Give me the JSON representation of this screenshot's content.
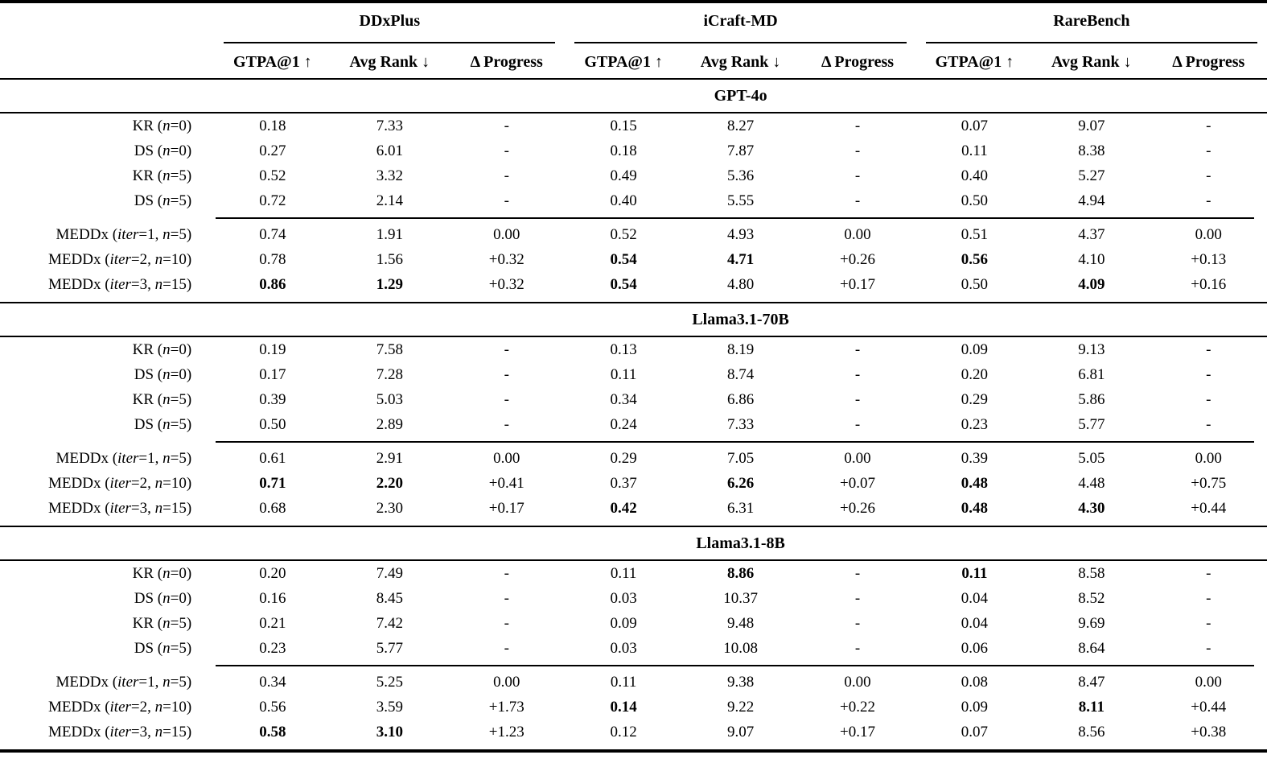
{
  "page": {
    "background": "#ffffff",
    "text_color": "#000000",
    "rule_color": "#000000"
  },
  "table": {
    "corner_label": "",
    "groups": [
      {
        "name": "DDxPlus"
      },
      {
        "name": "iCraft-MD"
      },
      {
        "name": "RareBench"
      }
    ],
    "metric_headers": [
      {
        "label": "GTPA@1",
        "arrow": "↑"
      },
      {
        "label": "Avg Rank",
        "arrow": "↓"
      },
      {
        "label": "Δ Progress",
        "arrow": ""
      }
    ],
    "sections": [
      {
        "model": "GPT-4o",
        "baseline_rows": [
          {
            "label": "KR (*n*=0)",
            "values": [
              "0.18",
              "7.33",
              "-",
              "0.15",
              "8.27",
              "-",
              "0.07",
              "9.07",
              "-"
            ],
            "bold": []
          },
          {
            "label": "DS (*n*=0)",
            "values": [
              "0.27",
              "6.01",
              "-",
              "0.18",
              "7.87",
              "-",
              "0.11",
              "8.38",
              "-"
            ],
            "bold": []
          },
          {
            "label": "KR (*n*=5)",
            "values": [
              "0.52",
              "3.32",
              "-",
              "0.49",
              "5.36",
              "-",
              "0.40",
              "5.27",
              "-"
            ],
            "bold": []
          },
          {
            "label": "DS (*n*=5)",
            "values": [
              "0.72",
              "2.14",
              "-",
              "0.40",
              "5.55",
              "-",
              "0.50",
              "4.94",
              "-"
            ],
            "bold": []
          }
        ],
        "meddx_rows": [
          {
            "label": "MEDDx (*iter*=1, *n*=5)",
            "values": [
              "0.74",
              "1.91",
              "0.00",
              "0.52",
              "4.93",
              "0.00",
              "0.51",
              "4.37",
              "0.00"
            ],
            "bold": []
          },
          {
            "label": "MEDDx (*iter*=2, *n*=10)",
            "values": [
              "0.78",
              "1.56",
              "+0.32",
              "0.54",
              "4.71",
              "+0.26",
              "0.56",
              "4.10",
              "+0.13"
            ],
            "bold": [
              3,
              4,
              6
            ]
          },
          {
            "label": "MEDDx (*iter*=3, *n*=15)",
            "values": [
              "0.86",
              "1.29",
              "+0.32",
              "0.54",
              "4.80",
              "+0.17",
              "0.50",
              "4.09",
              "+0.16"
            ],
            "bold": [
              0,
              1,
              3,
              7
            ]
          }
        ]
      },
      {
        "model": "Llama3.1-70B",
        "baseline_rows": [
          {
            "label": "KR (*n*=0)",
            "values": [
              "0.19",
              "7.58",
              "-",
              "0.13",
              "8.19",
              "-",
              "0.09",
              "9.13",
              "-"
            ],
            "bold": []
          },
          {
            "label": "DS (*n*=0)",
            "values": [
              "0.17",
              "7.28",
              "-",
              "0.11",
              "8.74",
              "-",
              "0.20",
              "6.81",
              "-"
            ],
            "bold": []
          },
          {
            "label": "KR (*n*=5)",
            "values": [
              "0.39",
              "5.03",
              "-",
              "0.34",
              "6.86",
              "-",
              "0.29",
              "5.86",
              "-"
            ],
            "bold": []
          },
          {
            "label": "DS (*n*=5)",
            "values": [
              "0.50",
              "2.89",
              "-",
              "0.24",
              "7.33",
              "-",
              "0.23",
              "5.77",
              "-"
            ],
            "bold": []
          }
        ],
        "meddx_rows": [
          {
            "label": "MEDDx (*iter*=1, *n*=5)",
            "values": [
              "0.61",
              "2.91",
              "0.00",
              "0.29",
              "7.05",
              "0.00",
              "0.39",
              "5.05",
              "0.00"
            ],
            "bold": []
          },
          {
            "label": "MEDDx (*iter*=2, *n*=10)",
            "values": [
              "0.71",
              "2.20",
              "+0.41",
              "0.37",
              "6.26",
              "+0.07",
              "0.48",
              "4.48",
              "+0.75"
            ],
            "bold": [
              0,
              1,
              4,
              6
            ]
          },
          {
            "label": "MEDDx (*iter*=3, *n*=15)",
            "values": [
              "0.68",
              "2.30",
              "+0.17",
              "0.42",
              "6.31",
              "+0.26",
              "0.48",
              "4.30",
              "+0.44"
            ],
            "bold": [
              3,
              6,
              7
            ]
          }
        ]
      },
      {
        "model": "Llama3.1-8B",
        "baseline_rows": [
          {
            "label": "KR (*n*=0)",
            "values": [
              "0.20",
              "7.49",
              "-",
              "0.11",
              "8.86",
              "-",
              "0.11",
              "8.58",
              "-"
            ],
            "bold": [
              4,
              6
            ]
          },
          {
            "label": "DS (*n*=0)",
            "values": [
              "0.16",
              "8.45",
              "-",
              "0.03",
              "10.37",
              "-",
              "0.04",
              "8.52",
              "-"
            ],
            "bold": []
          },
          {
            "label": "KR (*n*=5)",
            "values": [
              "0.21",
              "7.42",
              "-",
              "0.09",
              "9.48",
              "-",
              "0.04",
              "9.69",
              "-"
            ],
            "bold": []
          },
          {
            "label": "DS (*n*=5)",
            "values": [
              "0.23",
              "5.77",
              "-",
              "0.03",
              "10.08",
              "-",
              "0.06",
              "8.64",
              "-"
            ],
            "bold": []
          }
        ],
        "meddx_rows": [
          {
            "label": "MEDDx (*iter*=1, *n*=5)",
            "values": [
              "0.34",
              "5.25",
              "0.00",
              "0.11",
              "9.38",
              "0.00",
              "0.08",
              "8.47",
              "0.00"
            ],
            "bold": []
          },
          {
            "label": "MEDDx (*iter*=2, *n*=10)",
            "values": [
              "0.56",
              "3.59",
              "+1.73",
              "0.14",
              "9.22",
              "+0.22",
              "0.09",
              "8.11",
              "+0.44"
            ],
            "bold": [
              3,
              7
            ]
          },
          {
            "label": "MEDDx (*iter*=3, *n*=15)",
            "values": [
              "0.58",
              "3.10",
              "+1.23",
              "0.12",
              "9.07",
              "+0.17",
              "0.07",
              "8.56",
              "+0.38"
            ],
            "bold": [
              0,
              1
            ]
          }
        ]
      }
    ]
  }
}
